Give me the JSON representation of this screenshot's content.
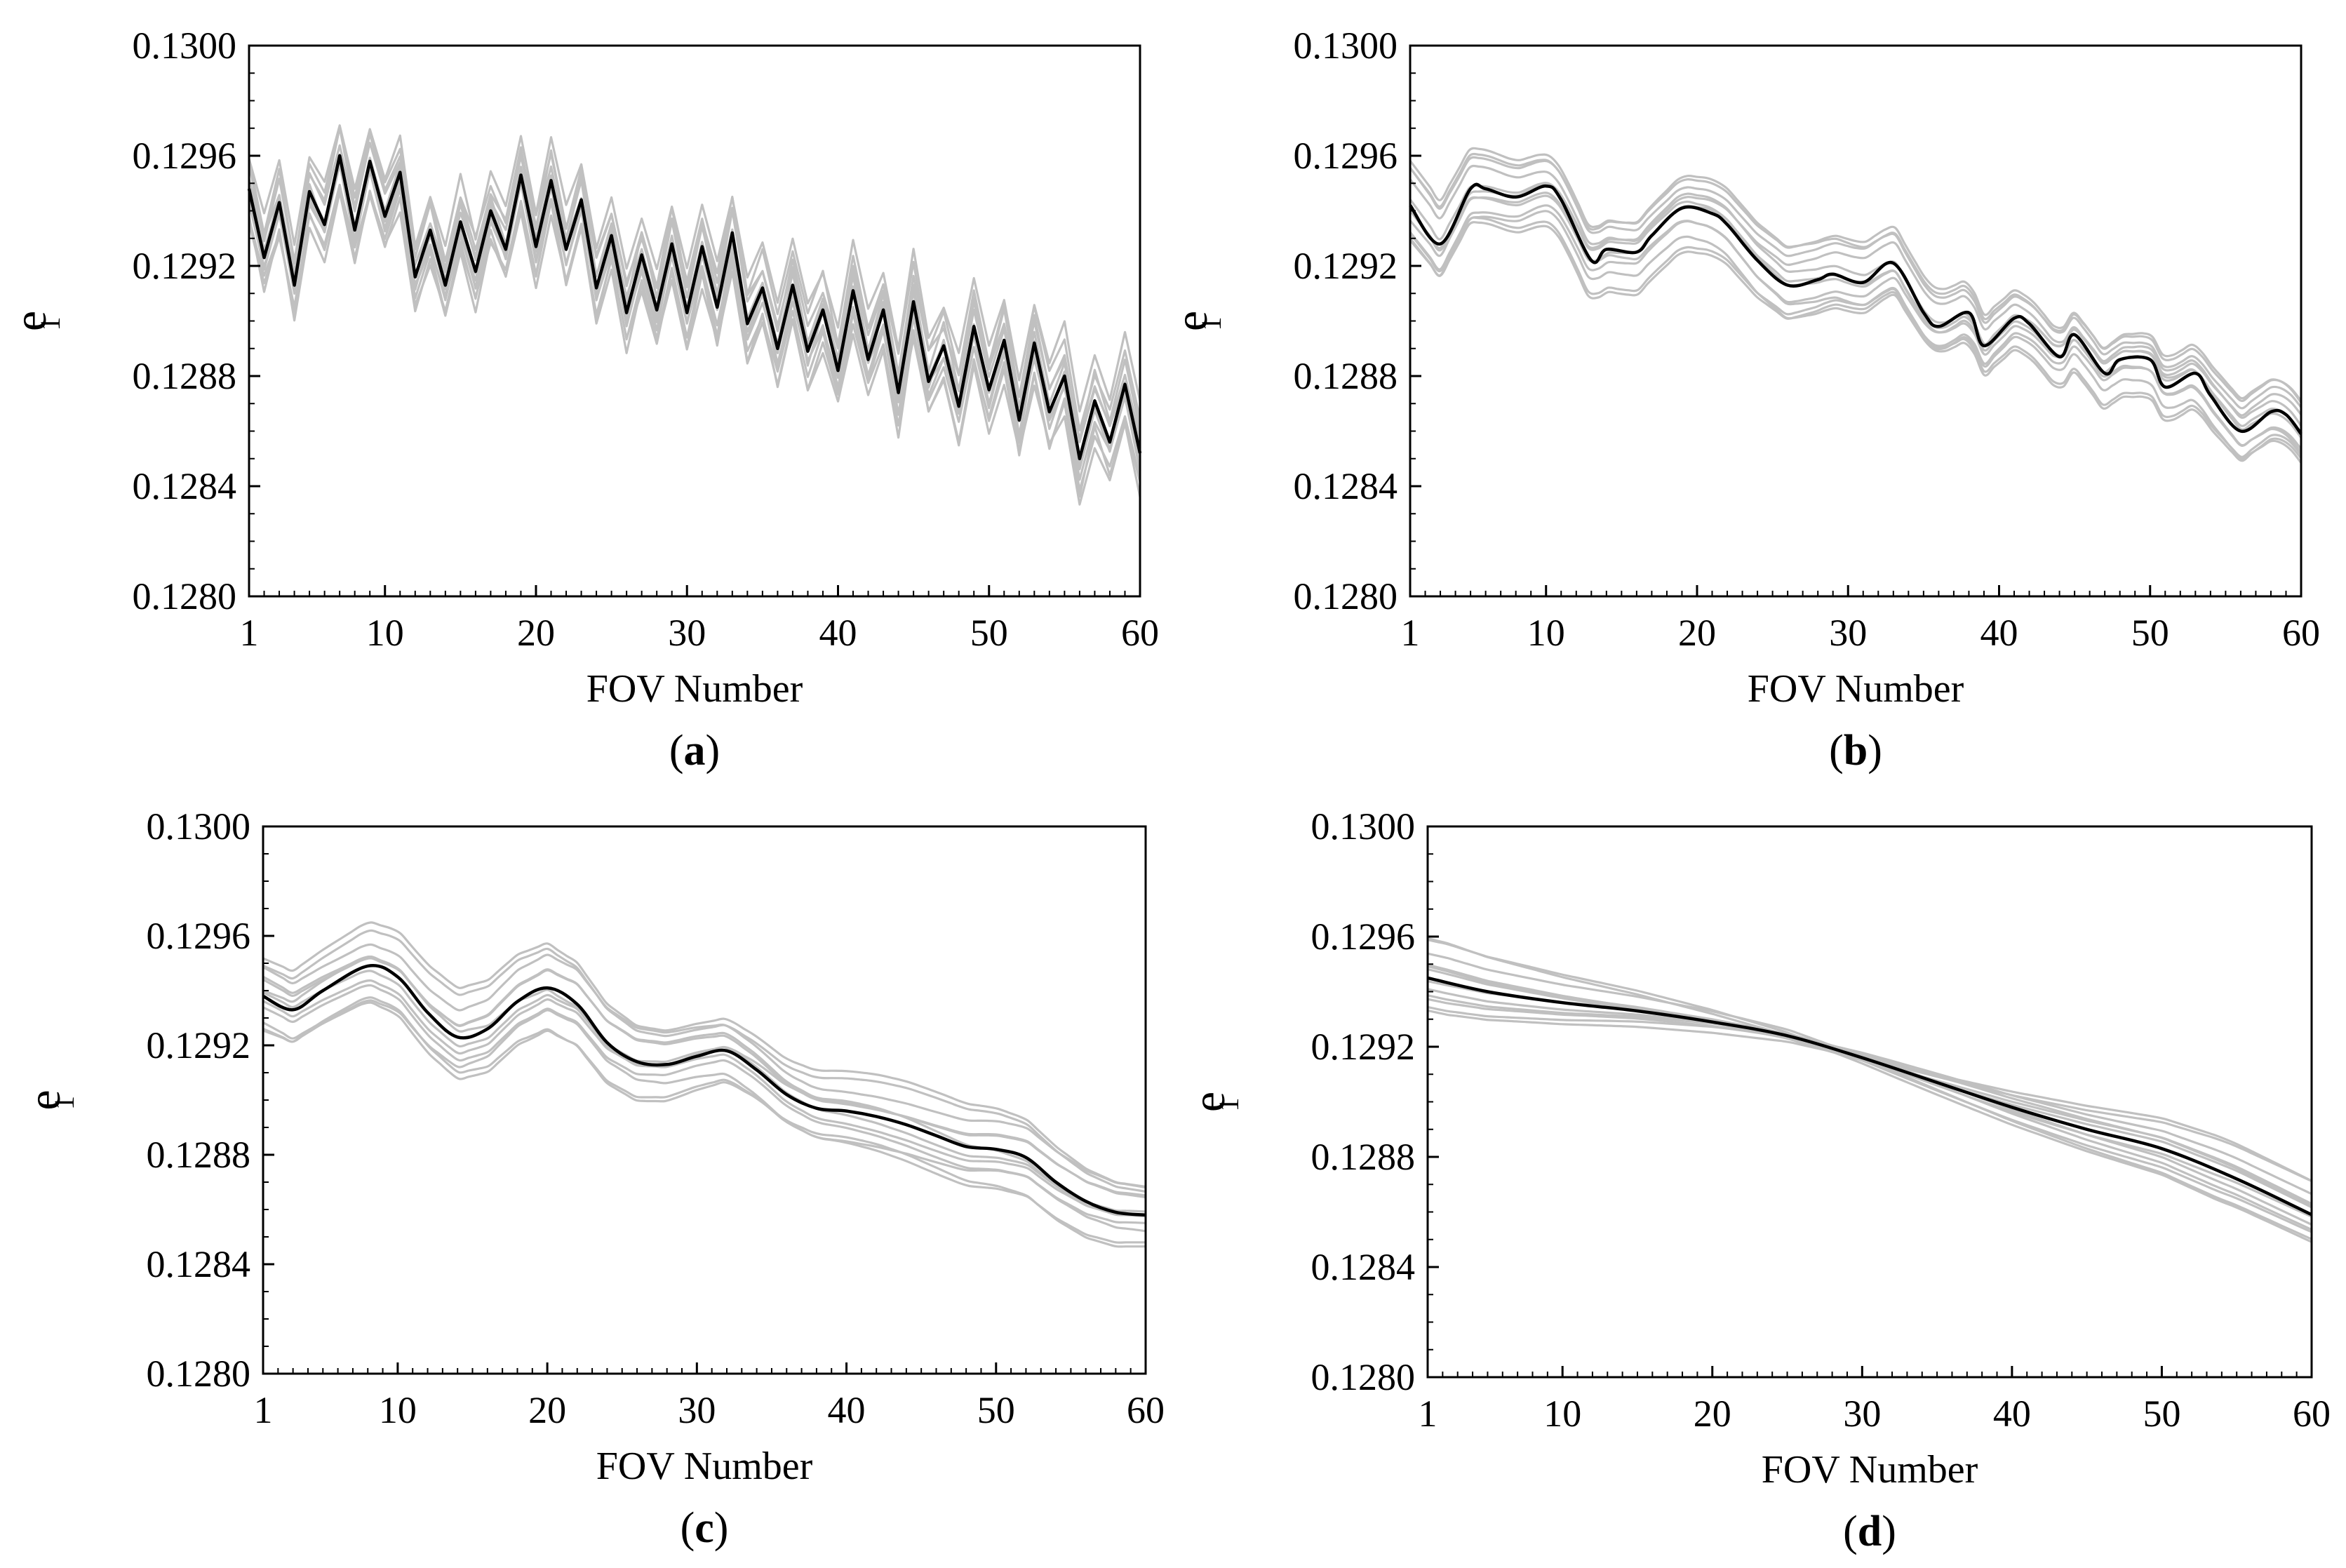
{
  "chart_data": [
    {
      "type": "line",
      "panel_label": "a",
      "xlabel": "FOV  Number",
      "ylabel": "e",
      "ylabel_subscript": "1",
      "xlim": [
        1,
        60
      ],
      "ylim": [
        0.128,
        0.13
      ],
      "xticks": [
        "1",
        "10",
        "20",
        "30",
        "40",
        "50",
        "60"
      ],
      "yticks": [
        "0.1280",
        "0.1284",
        "0.1288",
        "0.1292",
        "0.1296",
        "0.1300"
      ],
      "style": "zigzag",
      "mean_series": {
        "name": "mean",
        "color": "#000000",
        "x": [
          1,
          2,
          3,
          4,
          5,
          6,
          7,
          8,
          9,
          10,
          11,
          12,
          13,
          14,
          15,
          16,
          17,
          18,
          19,
          20,
          21,
          22,
          23,
          24,
          25,
          26,
          27,
          28,
          29,
          30,
          31,
          32,
          33,
          34,
          35,
          36,
          37,
          38,
          39,
          40,
          41,
          42,
          43,
          44,
          45,
          46,
          47,
          48,
          49,
          50,
          51,
          52,
          53,
          54,
          55,
          56,
          57,
          58,
          59,
          60
        ],
        "values": [
          0.12948,
          0.12923,
          0.12943,
          0.12913,
          0.12947,
          0.12935,
          0.1296,
          0.12933,
          0.12958,
          0.12938,
          0.12954,
          0.12916,
          0.12933,
          0.12913,
          0.12936,
          0.12918,
          0.1294,
          0.12926,
          0.12953,
          0.12927,
          0.12951,
          0.12926,
          0.12944,
          0.12912,
          0.12931,
          0.12903,
          0.12924,
          0.12904,
          0.12928,
          0.12903,
          0.12927,
          0.12905,
          0.12932,
          0.12899,
          0.12912,
          0.1289,
          0.12913,
          0.12889,
          0.12904,
          0.12882,
          0.12911,
          0.12886,
          0.12904,
          0.12874,
          0.12907,
          0.12878,
          0.12891,
          0.12869,
          0.12898,
          0.12875,
          0.12893,
          0.12864,
          0.12892,
          0.12867,
          0.1288,
          0.1285,
          0.12871,
          0.12856,
          0.12877,
          0.12852
        ]
      },
      "ensemble": {
        "color": "#c0c0c0",
        "count": 12,
        "spread_start": 0.00022,
        "spread_end": 0.00028
      }
    },
    {
      "type": "line",
      "panel_label": "b",
      "xlabel": "FOV  Number",
      "ylabel": "e",
      "ylabel_subscript": "1",
      "xlim": [
        1,
        60
      ],
      "ylim": [
        0.128,
        0.13
      ],
      "xticks": [
        "1",
        "10",
        "20",
        "30",
        "40",
        "50",
        "60"
      ],
      "yticks": [
        "0.1280",
        "0.1284",
        "0.1288",
        "0.1292",
        "0.1296",
        "0.1300"
      ],
      "style": "smoothed",
      "mean_series": {
        "name": "mean",
        "color": "#000000",
        "x": [
          1,
          3,
          5,
          6,
          8,
          10,
          11,
          13,
          14,
          16,
          17,
          19,
          21,
          22,
          24,
          26,
          28,
          29,
          31,
          33,
          35,
          36,
          38,
          39,
          41,
          42,
          44,
          45,
          47,
          48,
          50,
          51,
          53,
          54,
          56,
          58,
          59,
          60
        ],
        "values": [
          0.12942,
          0.12928,
          0.12948,
          0.12948,
          0.12945,
          0.12949,
          0.12944,
          0.12922,
          0.12926,
          0.12925,
          0.12931,
          0.12941,
          0.12939,
          0.12935,
          0.12922,
          0.12913,
          0.12915,
          0.12917,
          0.12914,
          0.12921,
          0.12903,
          0.12898,
          0.12903,
          0.12891,
          0.12901,
          0.12899,
          0.12887,
          0.12895,
          0.12881,
          0.12886,
          0.12886,
          0.12876,
          0.12881,
          0.12873,
          0.1286,
          0.12867,
          0.12866,
          0.12859
        ]
      },
      "ensemble": {
        "color": "#c0c0c0",
        "count": 12,
        "spread_start": 0.00028,
        "spread_end": 0.0002
      }
    },
    {
      "type": "line",
      "panel_label": "c",
      "xlabel": "FOV  Number",
      "ylabel": "e",
      "ylabel_subscript": "1",
      "xlim": [
        1,
        60
      ],
      "ylim": [
        0.128,
        0.13
      ],
      "xticks": [
        "1",
        "10",
        "20",
        "30",
        "40",
        "50",
        "60"
      ],
      "yticks": [
        "0.1280",
        "0.1284",
        "0.1288",
        "0.1292",
        "0.1296",
        "0.1300"
      ],
      "style": "smooth",
      "mean_series": {
        "name": "mean",
        "color": "#000000",
        "x": [
          1,
          3,
          5,
          8,
          10,
          12,
          14,
          16,
          18,
          20,
          22,
          24,
          26,
          28,
          30,
          32,
          34,
          36,
          38,
          40,
          42,
          44,
          46,
          48,
          50,
          52,
          54,
          56,
          58,
          60
        ],
        "values": [
          0.12938,
          0.12933,
          0.1294,
          0.12949,
          0.12945,
          0.12932,
          0.12923,
          0.12926,
          0.12936,
          0.12941,
          0.12935,
          0.12921,
          0.12914,
          0.12913,
          0.12916,
          0.12918,
          0.12911,
          0.12902,
          0.12897,
          0.12896,
          0.12894,
          0.12891,
          0.12887,
          0.12883,
          0.12882,
          0.12879,
          0.1287,
          0.12863,
          0.12859,
          0.12858
        ]
      },
      "ensemble": {
        "color": "#c0c0c0",
        "count": 12,
        "spread_start": 0.00028,
        "spread_end": 0.00022
      }
    },
    {
      "type": "line",
      "panel_label": "d",
      "xlabel": "FOV  Number",
      "ylabel": "e",
      "ylabel_subscript": "1",
      "xlim": [
        1,
        60
      ],
      "ylim": [
        0.128,
        0.13
      ],
      "xticks": [
        "1",
        "10",
        "20",
        "30",
        "40",
        "50",
        "60"
      ],
      "yticks": [
        "0.1280",
        "0.1284",
        "0.1288",
        "0.1292",
        "0.1296",
        "0.1300"
      ],
      "style": "polynomial",
      "mean_series": {
        "name": "mean",
        "color": "#000000",
        "x": [
          1,
          5,
          10,
          15,
          20,
          25,
          30,
          35,
          40,
          45,
          50,
          55,
          60
        ],
        "values": [
          0.12945,
          0.1294,
          0.12936,
          0.12933,
          0.12929,
          0.12924,
          0.12916,
          0.12907,
          0.12898,
          0.1289,
          0.12883,
          0.12872,
          0.12859
        ]
      },
      "ensemble": {
        "color": "#c0c0c0",
        "count": 12,
        "spread_start": 0.00028,
        "spread_end": 0.00024
      }
    }
  ]
}
